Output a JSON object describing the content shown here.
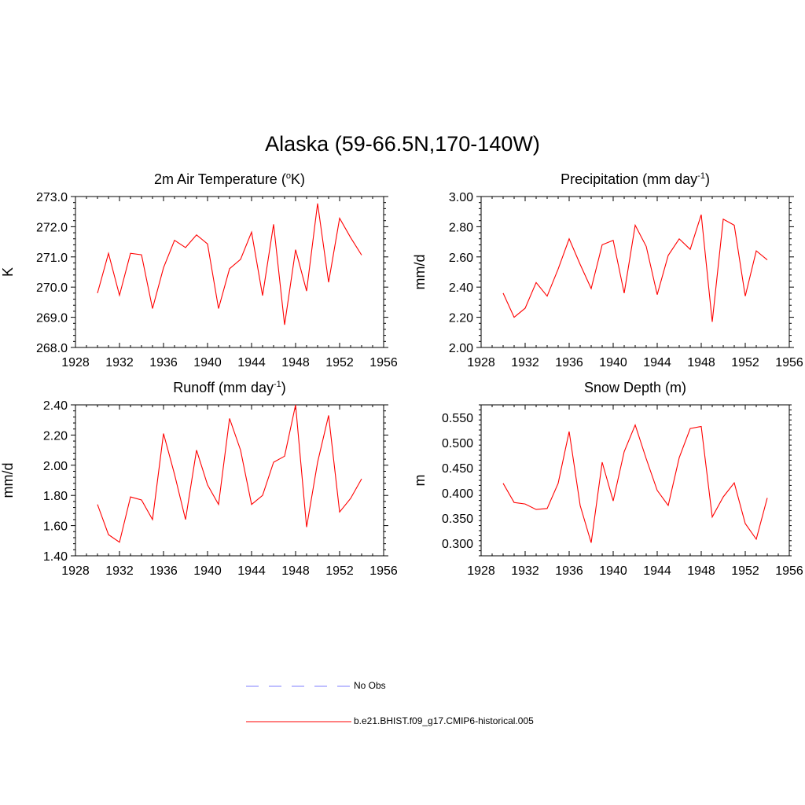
{
  "figure": {
    "title": "Alaska (59-66.5N,170-140W)"
  },
  "chart_data": [
    {
      "type": "line",
      "title": "2m Air Temperature",
      "title_unit_prefix": "(",
      "title_sup": "o",
      "title_unit_suffix": "K)",
      "ylabel": "K",
      "xlabel": "",
      "xlim": [
        1928,
        1956
      ],
      "ylim": [
        268.0,
        273.0
      ],
      "xticks": [
        1928,
        1932,
        1936,
        1940,
        1944,
        1948,
        1952,
        1956
      ],
      "yticks": [
        "268.0",
        "269.0",
        "270.0",
        "271.0",
        "272.0",
        "273.0"
      ],
      "x": [
        1930,
        1931,
        1932,
        1933,
        1934,
        1935,
        1936,
        1937,
        1938,
        1939,
        1940,
        1941,
        1942,
        1943,
        1944,
        1945,
        1946,
        1947,
        1948,
        1949,
        1950,
        1951,
        1952,
        1953,
        1954
      ],
      "series": [
        {
          "name": "b.e21.BHIST.f09_g17.CMIP6-historical.005",
          "color": "#ff0000",
          "values": [
            269.8,
            271.12,
            269.73,
            271.12,
            271.07,
            269.29,
            270.64,
            271.55,
            271.31,
            271.73,
            271.43,
            269.29,
            270.61,
            270.92,
            271.82,
            269.72,
            272.08,
            268.75,
            271.24,
            269.87,
            272.77,
            270.16,
            272.28,
            271.64,
            271.06
          ]
        }
      ]
    },
    {
      "type": "line",
      "title": "Precipitation",
      "title_unit_prefix": "(mm day",
      "title_sup": "-1",
      "title_unit_suffix": ")",
      "ylabel": "mm/d",
      "xlabel": "",
      "xlim": [
        1928,
        1956
      ],
      "ylim": [
        2.0,
        3.0
      ],
      "xticks": [
        1928,
        1932,
        1936,
        1940,
        1944,
        1948,
        1952,
        1956
      ],
      "yticks": [
        "2.00",
        "2.20",
        "2.40",
        "2.60",
        "2.80",
        "3.00"
      ],
      "x": [
        1930,
        1931,
        1932,
        1933,
        1934,
        1935,
        1936,
        1937,
        1938,
        1939,
        1940,
        1941,
        1942,
        1943,
        1944,
        1945,
        1946,
        1947,
        1948,
        1949,
        1950,
        1951,
        1952,
        1953,
        1954
      ],
      "series": [
        {
          "name": "b.e21.BHIST.f09_g17.CMIP6-historical.005",
          "color": "#ff0000",
          "values": [
            2.36,
            2.2,
            2.26,
            2.43,
            2.34,
            2.52,
            2.72,
            2.55,
            2.39,
            2.68,
            2.71,
            2.36,
            2.81,
            2.67,
            2.35,
            2.61,
            2.72,
            2.65,
            2.88,
            2.17,
            2.85,
            2.81,
            2.34,
            2.64,
            2.58
          ]
        }
      ]
    },
    {
      "type": "line",
      "title": "Runoff",
      "title_unit_prefix": "(mm day",
      "title_sup": "-1",
      "title_unit_suffix": ")",
      "ylabel": "mm/d",
      "xlabel": "",
      "xlim": [
        1928,
        1956
      ],
      "ylim": [
        1.4,
        2.4
      ],
      "xticks": [
        1928,
        1932,
        1936,
        1940,
        1944,
        1948,
        1952,
        1956
      ],
      "yticks": [
        "1.40",
        "1.60",
        "1.80",
        "2.00",
        "2.20",
        "2.40"
      ],
      "x": [
        1930,
        1931,
        1932,
        1933,
        1934,
        1935,
        1936,
        1937,
        1938,
        1939,
        1940,
        1941,
        1942,
        1943,
        1944,
        1945,
        1946,
        1947,
        1948,
        1949,
        1950,
        1951,
        1952,
        1953,
        1954
      ],
      "series": [
        {
          "name": "b.e21.BHIST.f09_g17.CMIP6-historical.005",
          "color": "#ff0000",
          "values": [
            1.74,
            1.54,
            1.49,
            1.79,
            1.77,
            1.64,
            2.21,
            1.94,
            1.64,
            2.1,
            1.87,
            1.74,
            2.31,
            2.1,
            1.74,
            1.8,
            2.02,
            2.06,
            2.4,
            1.59,
            2.02,
            2.33,
            1.69,
            1.78,
            1.91
          ]
        }
      ]
    },
    {
      "type": "line",
      "title": "Snow Depth",
      "title_unit_prefix": "(m)",
      "title_sup": "",
      "title_unit_suffix": "",
      "ylabel": "m",
      "xlabel": "",
      "xlim": [
        1928,
        1956
      ],
      "ylim": [
        0.275,
        0.575
      ],
      "xticks": [
        1928,
        1932,
        1936,
        1940,
        1944,
        1948,
        1952,
        1956
      ],
      "yticks": [
        "0.300",
        "0.350",
        "0.400",
        "0.450",
        "0.500",
        "0.550"
      ],
      "x": [
        1930,
        1931,
        1932,
        1933,
        1934,
        1935,
        1936,
        1937,
        1938,
        1939,
        1940,
        1941,
        1942,
        1943,
        1944,
        1945,
        1946,
        1947,
        1948,
        1949,
        1950,
        1951,
        1952,
        1953,
        1954
      ],
      "series": [
        {
          "name": "b.e21.BHIST.f09_g17.CMIP6-historical.005",
          "color": "#ff0000",
          "values": [
            0.419,
            0.381,
            0.378,
            0.367,
            0.369,
            0.419,
            0.522,
            0.375,
            0.301,
            0.461,
            0.384,
            0.482,
            0.535,
            0.468,
            0.405,
            0.375,
            0.47,
            0.528,
            0.532,
            0.352,
            0.392,
            0.42,
            0.339,
            0.308,
            0.39
          ]
        }
      ]
    }
  ],
  "legend": {
    "entries": [
      {
        "label": "No Obs",
        "color": "#9999ff",
        "style": "dashed"
      },
      {
        "label": "b.e21.BHIST.f09_g17.CMIP6-historical.005",
        "color": "#ff0000",
        "style": "solid"
      }
    ]
  }
}
